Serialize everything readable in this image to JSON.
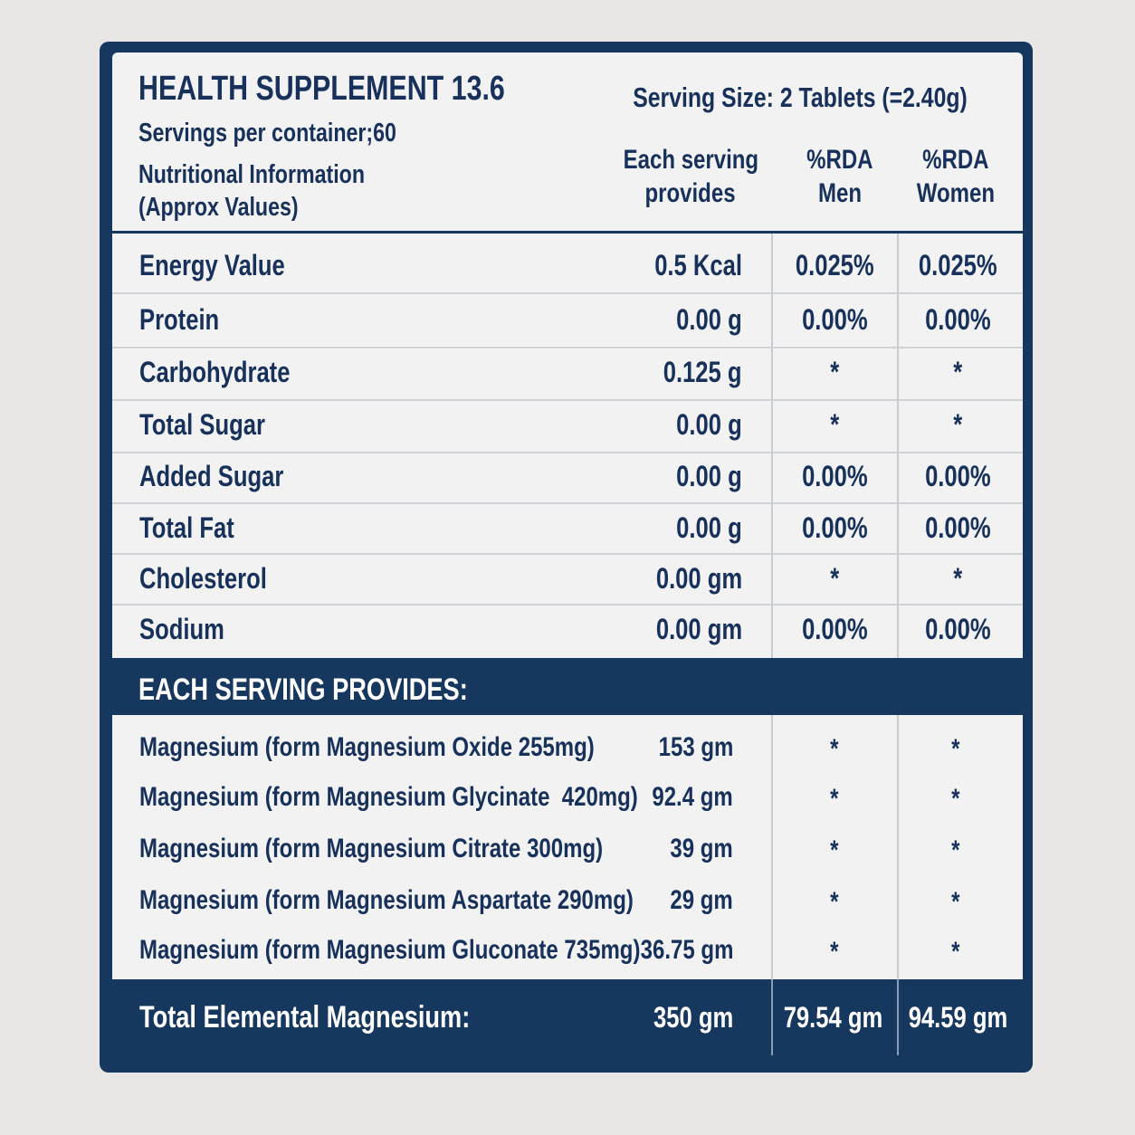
{
  "header": {
    "title": "HEALTH SUPPLEMENT 13.6",
    "servings": "Servings per container;60",
    "info": [
      "Nutritional Information",
      "(Approx Values)"
    ],
    "serving_size": "Serving Size: 2 Tablets (=2.40g)",
    "columns": [
      [
        "Each serving",
        "provides"
      ],
      [
        "%RDA",
        "Men"
      ],
      [
        "%RDA",
        "Women"
      ]
    ]
  },
  "nutrition": {
    "rows": [
      [
        "Energy Value",
        "0.5 Kcal",
        "0.025%",
        "0.025%"
      ],
      [
        "Protein",
        "0.00 g",
        "0.00%",
        "0.00%"
      ],
      [
        "Carbohydrate",
        "0.125 g",
        "*",
        "*"
      ],
      [
        "Total Sugar",
        "0.00 g",
        "*",
        "*"
      ],
      [
        "Added Sugar",
        "0.00 g",
        "0.00%",
        "0.00%"
      ],
      [
        "Total Fat",
        "0.00 g",
        "0.00%",
        "0.00%"
      ],
      [
        "Cholesterol",
        "0.00 gm",
        "*",
        "*"
      ],
      [
        "Sodium",
        "0.00 gm",
        "0.00%",
        "0.00%"
      ]
    ]
  },
  "minerals": {
    "title": "EACH SERVING PROVIDES:",
    "rows": [
      [
        "Magnesium (form Magnesium Oxide 255mg)",
        "153 gm",
        "*",
        "*"
      ],
      [
        "Magnesium (form Magnesium Glycinate  420mg)",
        "92.4 gm",
        "*",
        "*"
      ],
      [
        "Magnesium (form Magnesium Citrate 300mg)",
        "39 gm",
        "*",
        "*"
      ],
      [
        "Magnesium (form Magnesium Aspartate 290mg)",
        "29 gm",
        "*",
        "*"
      ],
      [
        "Magnesium (form Magnesium Gluconate 735mg)",
        "36.75 gm",
        "*",
        "*"
      ]
    ]
  },
  "total": [
    "Total Elemental Magnesium:",
    "350 gm",
    "79.54 gm",
    "94.59 gm"
  ]
}
